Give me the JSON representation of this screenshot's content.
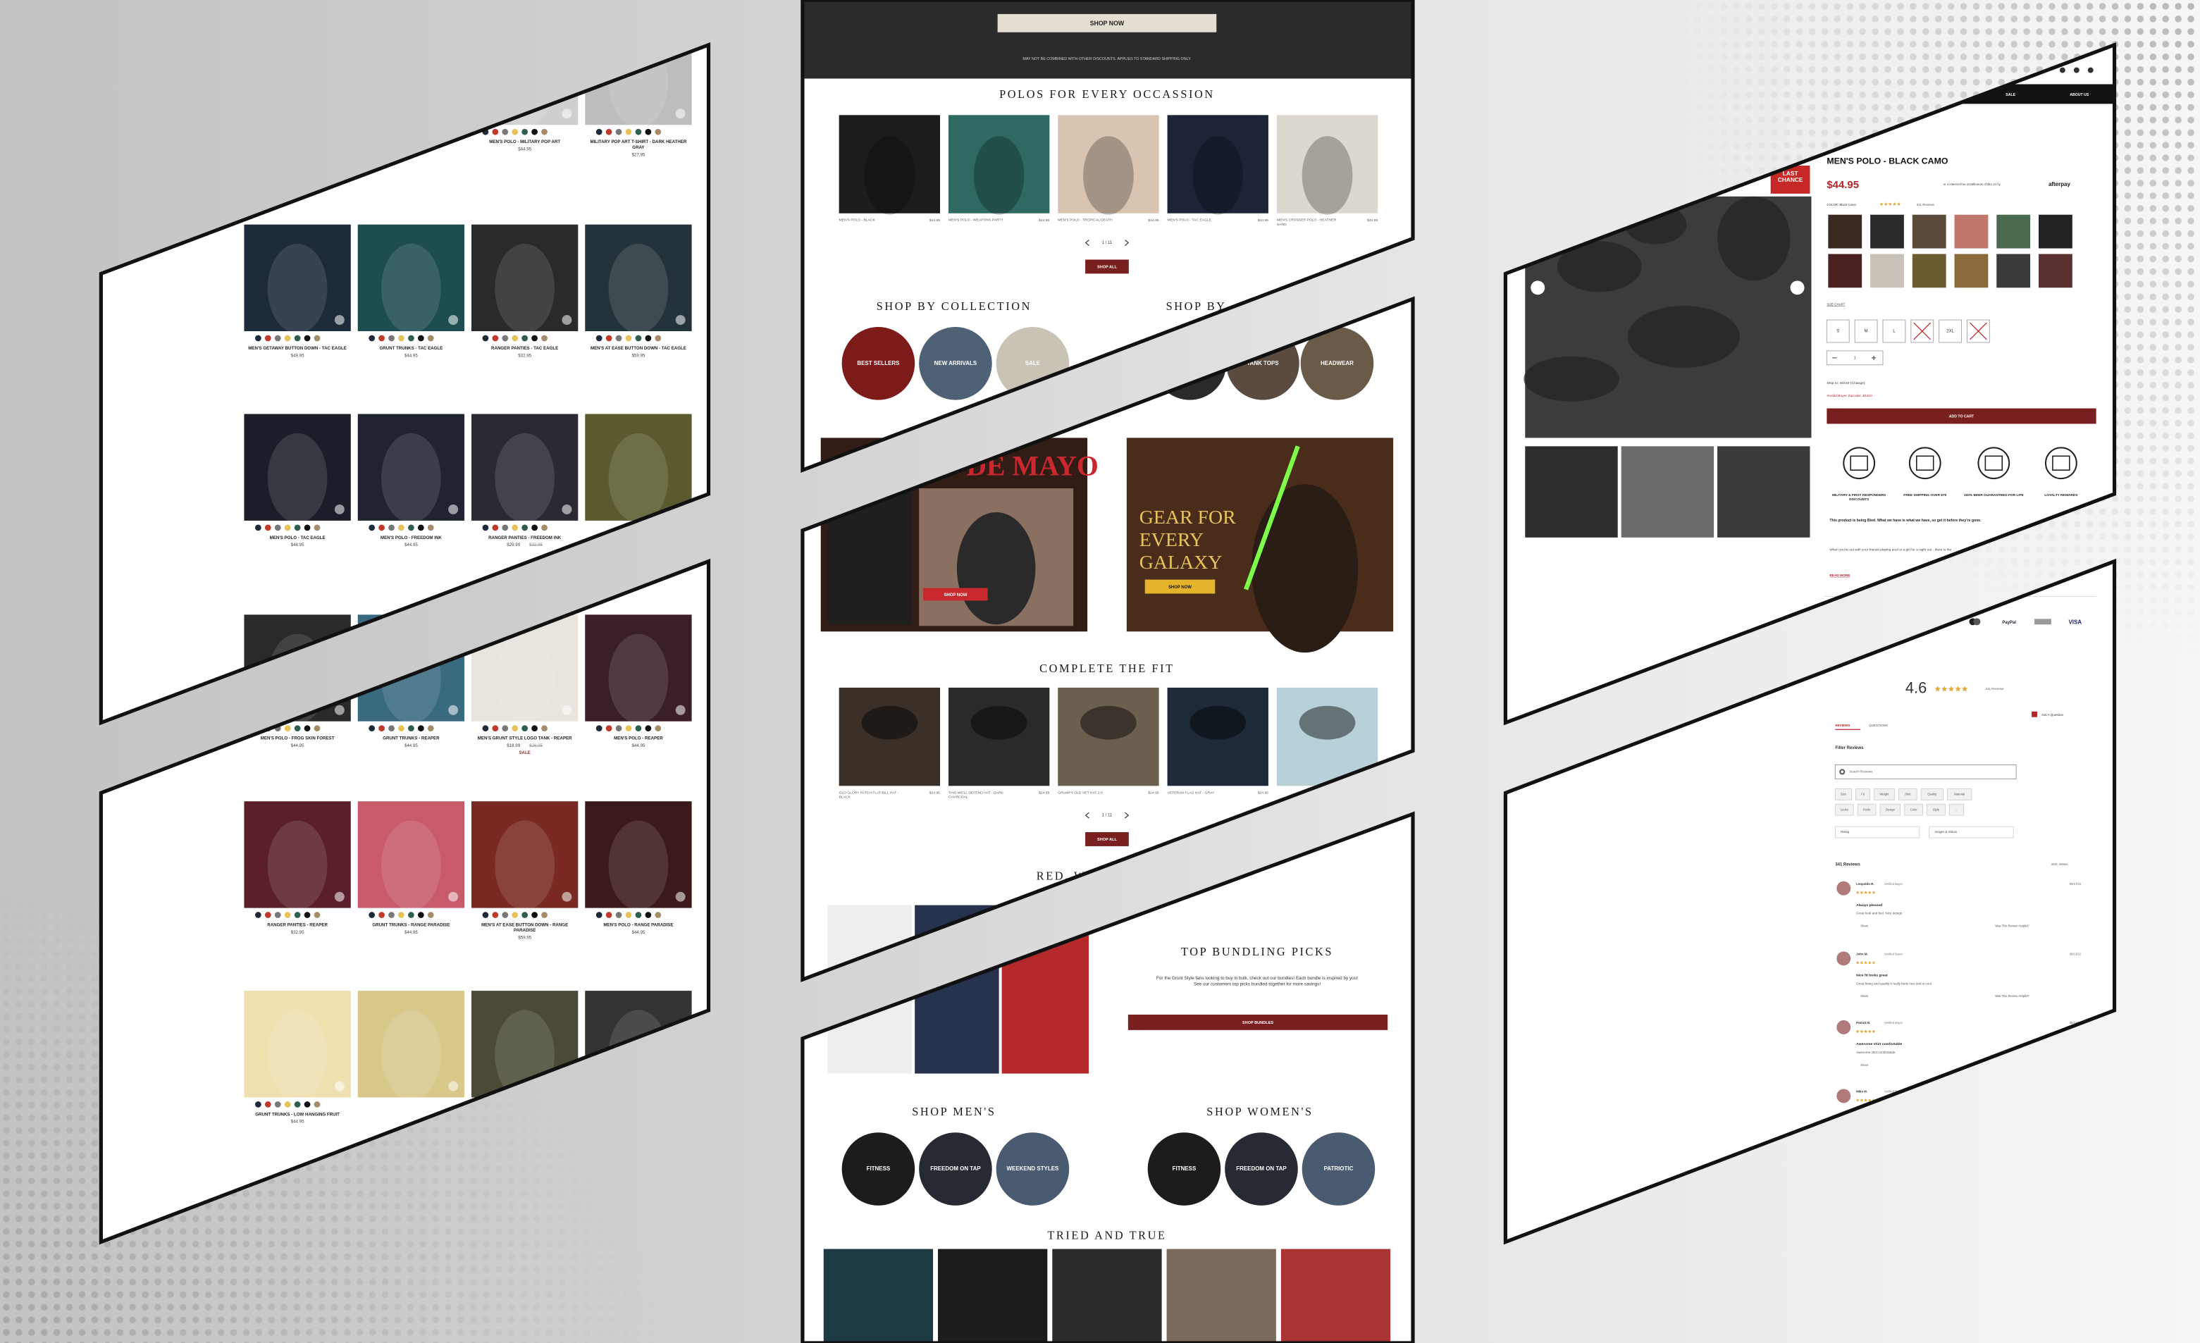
{
  "catalog": {
    "products": [
      {
        "name": "MEN'S POLO - MILITARY POP ART",
        "price": "$44.95"
      },
      {
        "name": "MILITARY POP ART T-SHIRT - DARK HEATHER GRAY",
        "price": "$27.95"
      },
      {
        "name": "MEN'S GETAWAY BUTTON DOWN - TAC EAGLE",
        "price": "$49.95"
      },
      {
        "name": "GRUNT TRUNKS - TAC EAGLE",
        "price": "$44.95"
      },
      {
        "name": "RANGER PANTIES - TAC EAGLE",
        "price": "$32.95"
      },
      {
        "name": "MEN'S AT EASE BUTTON DOWN - TAC EAGLE",
        "price": "$59.95"
      },
      {
        "name": "MEN'S POLO - TAC EAGLE",
        "price": "$44.95"
      },
      {
        "name": "MEN'S POLO - FREEDOM INK",
        "price": "$44.95"
      },
      {
        "name": "RANGER PANTIES - FREEDOM INK",
        "price": "$29.99",
        "compare": "$32.95"
      },
      {
        "name": "MEN'S POLO - FROG SKIN FOREST",
        "price": "$44.95"
      },
      {
        "name": "GRUNT TRUNKS - REAPER",
        "price": "$44.95"
      },
      {
        "name": "MEN'S GRUNT STYLE LOGO TANK - REAPER",
        "price": "$18.99",
        "compare": "$26.95",
        "badge": "SALE"
      },
      {
        "name": "MEN'S POLO - REAPER",
        "price": "$44.95"
      },
      {
        "name": "RANGER PANTIES - REAPER",
        "price": "$32.95"
      },
      {
        "name": "GRUNT TRUNKS - RANGE PARADISE",
        "price": "$44.95"
      },
      {
        "name": "MEN'S AT EASE BUTTON DOWN - RANGE PARADISE",
        "price": "$59.95"
      },
      {
        "name": "MEN'S POLO - RANGE PARADISE",
        "price": "$44.95"
      },
      {
        "name": "GRUNT TRUNKS - LOW HANGING FRUIT",
        "price": "$44.95"
      }
    ]
  },
  "home": {
    "promo_button": "SHOP NOW",
    "disclaimer": "MAY NOT BE COMBINED WITH OTHER DISCOUNTS. APPLIES TO STANDARD SHIPPING ONLY.",
    "polos": {
      "title": "POLOS FOR EVERY OCCASSION",
      "products": [
        {
          "name": "MEN'S POLO - BLACK",
          "price": "$44.95"
        },
        {
          "name": "MEN'S POLO - WEAPONS PARTY",
          "price": "$44.95"
        },
        {
          "name": "MEN'S POLO - TROPICAL DEATH",
          "price": "$44.95"
        },
        {
          "name": "MEN'S POLO - TAC EAGLE",
          "price": "$44.95"
        },
        {
          "name": "MEN'S CROSSER POLO - HEATHER SAND",
          "price": "$44.95"
        }
      ],
      "pager": "1 / 11",
      "button": "SHOP ALL"
    },
    "collections": {
      "title": "SHOP BY COLLECTION",
      "items": [
        "BEST SELLERS",
        "NEW ARRIVALS",
        "SALE"
      ]
    },
    "categories": {
      "title": "SHOP BY",
      "items": [
        "TANK TOPS",
        "HEADWEAR"
      ]
    },
    "banners": [
      {
        "headline": "CINCO DE MAYO",
        "button": "SHOP NOW"
      },
      {
        "headline": "GEAR FOR EVERY GALAXY",
        "button": "SHOP NOW"
      }
    ],
    "fit": {
      "title": "COMPLETE THE FIT",
      "products": [
        {
          "name": "OLD GLORY PATCH FLAT BILL HAT - BLACK",
          "price": "$24.95"
        },
        {
          "name": "THIS WE'LL DEFEND HAT - DARK CHARCOAL",
          "price": "$24.95"
        },
        {
          "name": "GRUMPY OLD VET HAT 2.0",
          "price": "$24.95"
        },
        {
          "name": "VETERAN FLAG HAT - GRAY",
          "price": "$24.95"
        }
      ],
      "pager": "1 / 11",
      "button": "SHOP ALL"
    },
    "red_white_blue": {
      "title": "RED, WHITE & BLUE"
    },
    "bundles": {
      "title": "TOP BUNDLING PICKS",
      "text": "For the Grunt Style fans looking to buy in bulk, check out our bundles! Each bundle is inspired by you! See our customers top picks bundled together for more savings!",
      "button": "SHOP BUNDLES"
    },
    "mens": {
      "title": "SHOP MEN'S",
      "items": [
        "FITNESS",
        "FREEDOM ON TAP",
        "WEEKEND STYLES"
      ]
    },
    "womens": {
      "title": "SHOP WOMEN'S",
      "items": [
        "FITNESS",
        "FREEDOM ON TAP",
        "PATRIOTIC"
      ]
    },
    "tried": {
      "title": "TRIED AND TRUE"
    }
  },
  "product": {
    "nav": [
      "SALE",
      "ABOUT US"
    ],
    "badge": "LAST CHANCE",
    "title": "MEN'S POLO - BLACK CAMO",
    "price": "$44.95",
    "installments": "or 4 interest-free installments of $11.24 by",
    "afterpay": "afterpay",
    "color_label": "COLOR: Black Camo",
    "reviews_link": "341 Reviews",
    "size_chart": "SIZE CHART",
    "sizes": [
      "S",
      "M",
      "L",
      "2XL"
    ],
    "qty": "1",
    "ship": "Ship to: 40410 (Change)",
    "error": "Invalid Buyer Zipcode: 40410",
    "cta": "ADD TO CART",
    "perks": [
      "MILITARY & FIRST RESPONDERS DISCOUNTS",
      "FREE SHIPPING OVER $75",
      "100% BEER GUARANTEED FOR LIFE",
      "LOYALTY REWARDS"
    ],
    "notice": "This product is being Bled. What we have is what we have, so get it before they're gone.",
    "description": "When you're out with your friends playing pool or a girl for a night out - there is the",
    "read_more": "READ MORE",
    "payments": [
      "PayPal",
      "VISA"
    ]
  },
  "reviews": {
    "score": "4.6",
    "count": "341 Reviews",
    "ask": "Ask A Question",
    "tabs": [
      "REVIEWS",
      "QUESTIONS"
    ],
    "filter": "Filter Reviews",
    "search": "Search Reviews",
    "chips": [
      "Size",
      "Fit",
      "Weight",
      "Shirt",
      "Quality",
      "Material",
      "Looks",
      "Feels",
      "Design",
      "Color",
      "Style",
      "..."
    ],
    "dropdowns": [
      "Rating",
      "Images & Videos"
    ],
    "total": "341 Reviews",
    "sort": "Sort: Select",
    "share": "Share",
    "helpful": "Was This Review Helpful?",
    "verified": "Verified Buyer",
    "items": [
      {
        "author": "Leopoldo R.",
        "date": "08/17/22",
        "title": "Always pleased",
        "body": "Great look and feel. Nice design."
      },
      {
        "author": "John M.",
        "date": "08/13/22",
        "title": "Nice fit looks great",
        "body": "Great fitting and quality it really feels nice and is cool"
      },
      {
        "author": "Patrick B.",
        "date": "08/12/22",
        "title": "Awesome shirt comfortable",
        "body": "Awesome shirt comfortable."
      },
      {
        "author": "Mike M.",
        "date": "08/10/22",
        "title": "",
        "body": ""
      }
    ]
  }
}
